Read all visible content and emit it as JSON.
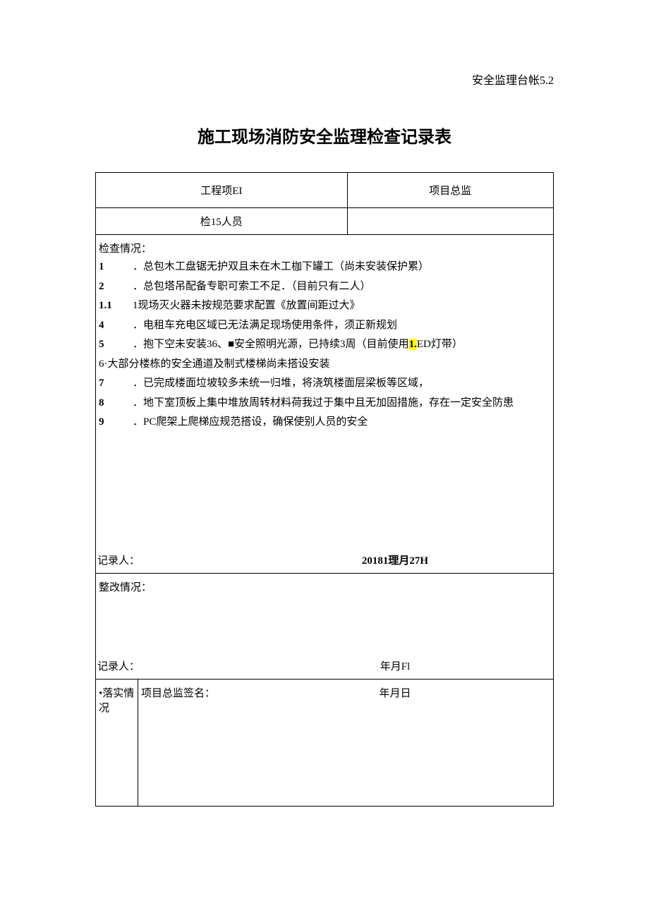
{
  "header": {
    "doc_ref": "安全监理台帐5.2"
  },
  "title": "施工现场消防安全监理检查记录表",
  "row1": {
    "label": "工程项EI",
    "content": "项目总监"
  },
  "row2": {
    "label": "检15人员",
    "content": ""
  },
  "inspection": {
    "title": "检查情况：",
    "items": [
      {
        "num": "1",
        "text": "．总包木工盘锯无护双且未在木工枷下罐工（尚未安装保护累）"
      },
      {
        "num": "2",
        "text": "．总包塔吊配备专职可索工不足．（目前只有二人）"
      },
      {
        "num": "1.1",
        "text": "1现场灭火器未按规范要求配置《放置间距过大》"
      },
      {
        "num": "4",
        "text": "．电租车充电区域已无法满足现场使用条件，须正新规划"
      },
      {
        "num": "5",
        "text_before": "．抱下空未安装36、■安全照明光源，已持续3周（目前使用",
        "highlight": "1.",
        "text_after": "ED灯带）"
      },
      {
        "num": "",
        "text": "6·大部分楼栋的安全通道及制式楼梯尚未搭设安装"
      },
      {
        "num": "7",
        "text": "．已完成楼面垃坡较多未统一归堆，将浇筑楼面层梁板等区域，"
      },
      {
        "num": "8",
        "text": "．地下室顶板上集中堆放周转材料荷我过于集中且无加固措施，存在一定安全防患"
      },
      {
        "num": "9",
        "text": "．PC爬架上爬梯应规范搭设，确保使别人员的安全"
      }
    ],
    "recorder": "记录人：",
    "date": "20181理月27H"
  },
  "rectify": {
    "title": "整改情况：",
    "recorder": "记录人：",
    "date": "年月Fl"
  },
  "implement": {
    "label": "•落实情况",
    "sign_label": "项目总监签名：",
    "date": "年月日"
  }
}
